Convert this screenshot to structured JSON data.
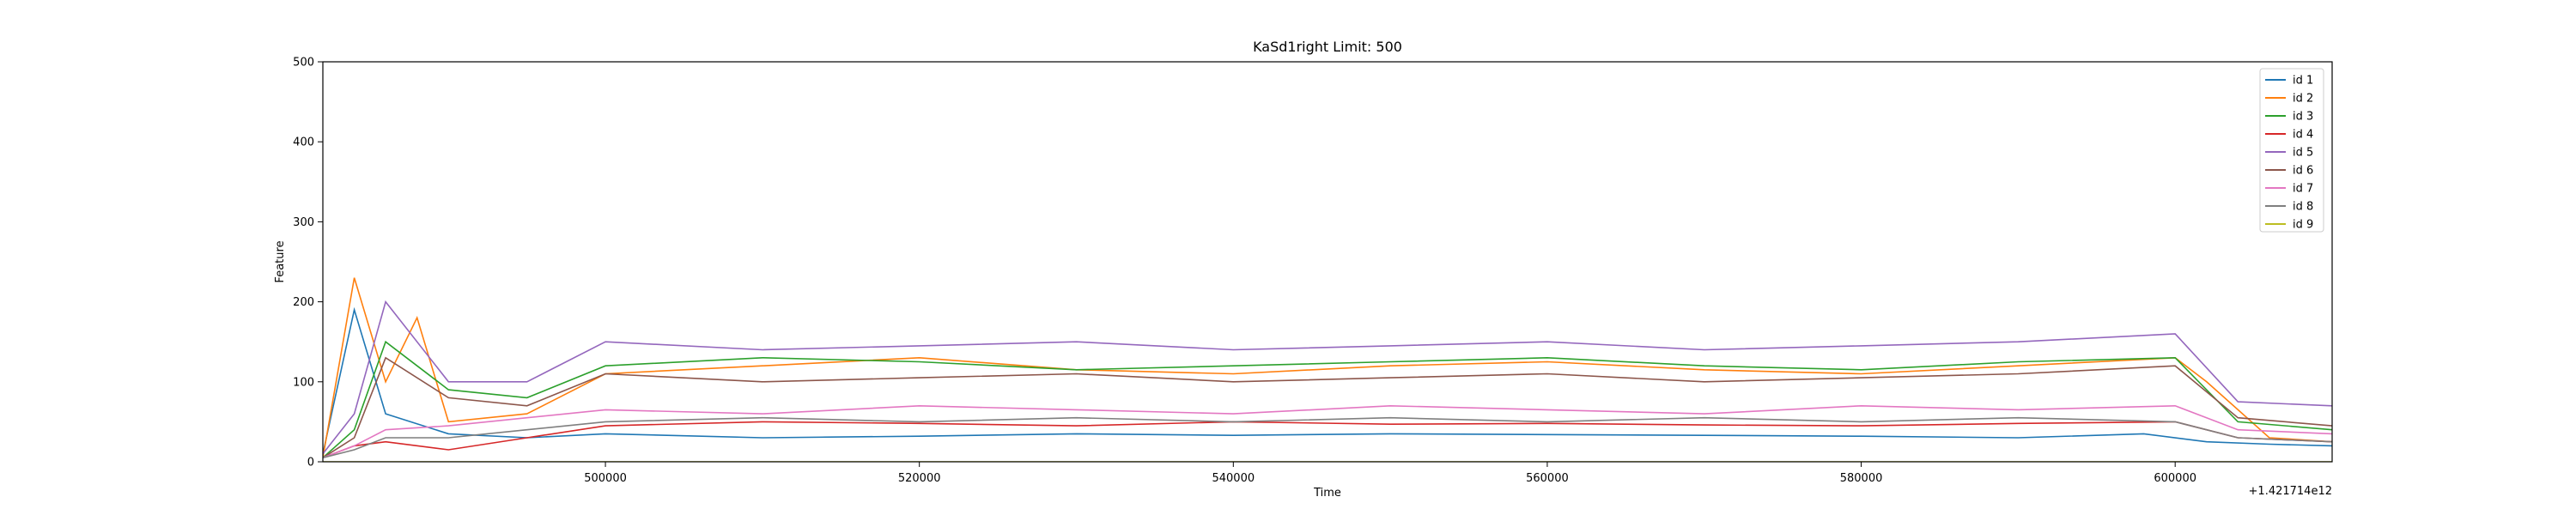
{
  "chart_data": {
    "type": "line",
    "title": "KaSd1right Limit: 500",
    "xlabel": "Time",
    "ylabel": "Feature",
    "x_offset_label": "+1.421714e12",
    "xlim": [
      482000,
      610000
    ],
    "ylim": [
      0,
      500
    ],
    "xticks": [
      500000,
      520000,
      540000,
      560000,
      580000,
      600000
    ],
    "xtick_labels": [
      "500000",
      "520000",
      "540000",
      "560000",
      "580000",
      "600000"
    ],
    "yticks": [
      0,
      100,
      200,
      300,
      400,
      500
    ],
    "ytick_labels": [
      "0",
      "100",
      "200",
      "300",
      "400",
      "500"
    ],
    "grid": false,
    "legend_position": "top-right",
    "series": [
      {
        "name": "id 1",
        "color": "#1f77b4",
        "x": [
          482000,
          484000,
          486000,
          490000,
          495000,
          500000,
          510000,
          520000,
          530000,
          540000,
          550000,
          560000,
          570000,
          580000,
          590000,
          598000,
          602000,
          606000,
          610000
        ],
        "values": [
          10,
          190,
          60,
          35,
          30,
          35,
          30,
          32,
          35,
          33,
          35,
          34,
          33,
          32,
          30,
          35,
          25,
          22,
          20
        ]
      },
      {
        "name": "id 2",
        "color": "#ff7f0e",
        "x": [
          482000,
          484000,
          486000,
          488000,
          490000,
          495000,
          500000,
          510000,
          520000,
          530000,
          540000,
          550000,
          560000,
          570000,
          580000,
          590000,
          600000,
          602000,
          606000,
          610000
        ],
        "values": [
          5,
          230,
          100,
          180,
          50,
          60,
          110,
          120,
          130,
          115,
          110,
          120,
          125,
          115,
          110,
          120,
          130,
          100,
          30,
          25
        ]
      },
      {
        "name": "id 3",
        "color": "#2ca02c",
        "x": [
          482000,
          484000,
          486000,
          490000,
          495000,
          500000,
          510000,
          520000,
          530000,
          540000,
          550000,
          560000,
          570000,
          580000,
          590000,
          600000,
          604000,
          610000
        ],
        "values": [
          5,
          40,
          150,
          90,
          80,
          120,
          130,
          125,
          115,
          120,
          125,
          130,
          120,
          115,
          125,
          130,
          50,
          40
        ]
      },
      {
        "name": "id 4",
        "color": "#d62728",
        "x": [
          482000,
          484000,
          486000,
          490000,
          495000,
          500000,
          510000,
          520000,
          530000,
          540000,
          550000,
          560000,
          570000,
          580000,
          590000,
          600000,
          604000,
          610000
        ],
        "values": [
          5,
          20,
          25,
          15,
          30,
          45,
          50,
          48,
          45,
          50,
          47,
          48,
          46,
          45,
          48,
          50,
          30,
          25
        ]
      },
      {
        "name": "id 5",
        "color": "#9467bd",
        "x": [
          482000,
          484000,
          486000,
          490000,
          495000,
          500000,
          510000,
          520000,
          530000,
          540000,
          550000,
          560000,
          570000,
          580000,
          590000,
          600000,
          604000,
          610000
        ],
        "values": [
          10,
          60,
          200,
          100,
          100,
          150,
          140,
          145,
          150,
          140,
          145,
          150,
          140,
          145,
          150,
          160,
          75,
          70
        ]
      },
      {
        "name": "id 6",
        "color": "#8c564b",
        "x": [
          482000,
          484000,
          486000,
          490000,
          495000,
          500000,
          510000,
          520000,
          530000,
          540000,
          550000,
          560000,
          570000,
          580000,
          590000,
          600000,
          604000,
          610000
        ],
        "values": [
          5,
          30,
          130,
          80,
          70,
          110,
          100,
          105,
          110,
          100,
          105,
          110,
          100,
          105,
          110,
          120,
          55,
          45
        ]
      },
      {
        "name": "id 7",
        "color": "#e377c2",
        "x": [
          482000,
          484000,
          486000,
          490000,
          495000,
          500000,
          510000,
          520000,
          530000,
          540000,
          550000,
          560000,
          570000,
          580000,
          590000,
          600000,
          604000,
          610000
        ],
        "values": [
          5,
          20,
          40,
          45,
          55,
          65,
          60,
          70,
          65,
          60,
          70,
          65,
          60,
          70,
          65,
          70,
          40,
          35
        ]
      },
      {
        "name": "id 8",
        "color": "#7f7f7f",
        "x": [
          482000,
          484000,
          486000,
          490000,
          495000,
          500000,
          510000,
          520000,
          530000,
          540000,
          550000,
          560000,
          570000,
          580000,
          590000,
          600000,
          604000,
          610000
        ],
        "values": [
          5,
          15,
          30,
          30,
          40,
          50,
          55,
          50,
          55,
          50,
          55,
          50,
          55,
          50,
          55,
          50,
          30,
          25
        ]
      },
      {
        "name": "id 9",
        "color": "#bcbd22",
        "x": [
          482000,
          610000
        ],
        "values": [
          0,
          0
        ]
      }
    ]
  }
}
